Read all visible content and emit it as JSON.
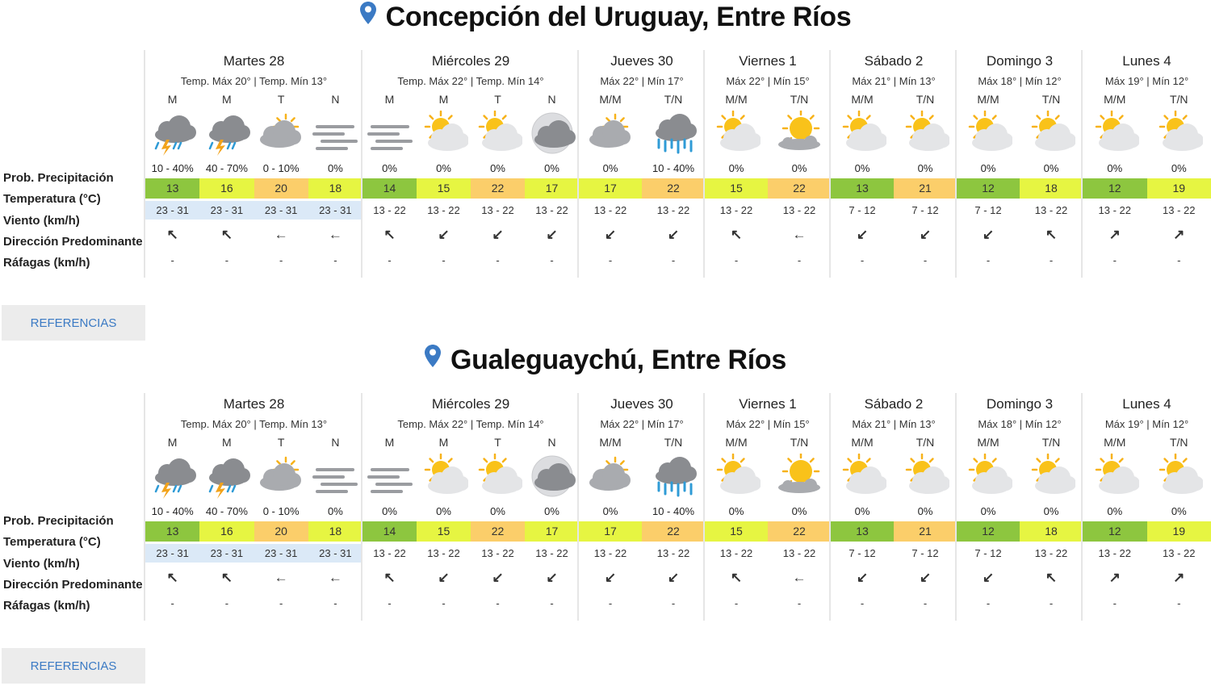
{
  "labels": {
    "prob": "Prob. Precipitación",
    "temp": "Temperatura (°C)",
    "wind": "Viento (km/h)",
    "dir": "Dirección Predominante",
    "gust": "Ráfagas (km/h)"
  },
  "colors": {
    "tcool": "#8dc63f",
    "tmild": "#e6f542",
    "twarm": "#fbce6a",
    "windbg": "#dbe9f7",
    "pin": "#3b7ac4",
    "ref": "#3b7ac4"
  },
  "locations": [
    {
      "title": "Concepción del Uruguay, Entre Ríos",
      "ref_label": "REFERENCIAS",
      "days": [
        {
          "name": "Martes 28",
          "temps": "Temp. Máx 20° | Temp. Mín 13°",
          "slots": [
            {
              "label": "M",
              "icon": "storm-icon",
              "precip": "10 - 40%",
              "temp": "13",
              "tcolor": "#8dc63f",
              "wind": "23 - 31",
              "dir": "↖",
              "gust": "-"
            },
            {
              "label": "M",
              "icon": "storm-icon",
              "precip": "40 - 70%",
              "temp": "16",
              "tcolor": "#e6f542",
              "wind": "23 - 31",
              "dir": "↖",
              "gust": "-"
            },
            {
              "label": "T",
              "icon": "cloudy-sun-icon",
              "precip": "0 - 10%",
              "temp": "20",
              "tcolor": "#fbce6a",
              "wind": "23 - 31",
              "dir": "←",
              "gust": "-"
            },
            {
              "label": "N",
              "icon": "fog-icon",
              "precip": "0%",
              "temp": "18",
              "tcolor": "#e6f542",
              "wind": "23 - 31",
              "dir": "←",
              "gust": "-"
            }
          ]
        },
        {
          "name": "Miércoles 29",
          "temps": "Temp. Máx 22° | Temp. Mín 14°",
          "slots": [
            {
              "label": "M",
              "icon": "fog-icon",
              "precip": "0%",
              "temp": "14",
              "tcolor": "#8dc63f",
              "wind": "13 - 22",
              "dir": "↖",
              "gust": "-"
            },
            {
              "label": "M",
              "icon": "partly-sunny-icon",
              "precip": "0%",
              "temp": "15",
              "tcolor": "#e6f542",
              "wind": "13 - 22",
              "dir": "↙",
              "gust": "-"
            },
            {
              "label": "T",
              "icon": "partly-sunny-icon",
              "precip": "0%",
              "temp": "22",
              "tcolor": "#fbce6a",
              "wind": "13 - 22",
              "dir": "↙",
              "gust": "-"
            },
            {
              "label": "N",
              "icon": "night-cloudy-icon",
              "precip": "0%",
              "temp": "17",
              "tcolor": "#e6f542",
              "wind": "13 - 22",
              "dir": "↙",
              "gust": "-"
            }
          ]
        },
        {
          "name": "Jueves 30",
          "temps": "Máx 22° | Mín 17°",
          "slots": [
            {
              "label": "M/M",
              "icon": "cloudy-sun-icon",
              "precip": "0%",
              "temp": "17",
              "tcolor": "#e6f542",
              "wind": "13 - 22",
              "dir": "↙",
              "gust": "-"
            },
            {
              "label": "T/N",
              "icon": "rain-icon",
              "precip": "10 - 40%",
              "temp": "22",
              "tcolor": "#fbce6a",
              "wind": "13 - 22",
              "dir": "↙",
              "gust": "-"
            }
          ]
        },
        {
          "name": "Viernes 1",
          "temps": "Máx 22° | Mín 15°",
          "slots": [
            {
              "label": "M/M",
              "icon": "partly-sunny-icon",
              "precip": "0%",
              "temp": "15",
              "tcolor": "#e6f542",
              "wind": "13 - 22",
              "dir": "↖",
              "gust": "-"
            },
            {
              "label": "T/N",
              "icon": "sunny-cloud-icon",
              "precip": "0%",
              "temp": "22",
              "tcolor": "#fbce6a",
              "wind": "13 - 22",
              "dir": "←",
              "gust": "-"
            }
          ]
        },
        {
          "name": "Sábado 2",
          "temps": "Máx 21° | Mín 13°",
          "slots": [
            {
              "label": "M/M",
              "icon": "partly-sunny-icon",
              "precip": "0%",
              "temp": "13",
              "tcolor": "#8dc63f",
              "wind": "7 - 12",
              "dir": "↙",
              "gust": "-"
            },
            {
              "label": "T/N",
              "icon": "partly-sunny-icon",
              "precip": "0%",
              "temp": "21",
              "tcolor": "#fbce6a",
              "wind": "7 - 12",
              "dir": "↙",
              "gust": "-"
            }
          ]
        },
        {
          "name": "Domingo 3",
          "temps": "Máx 18° | Mín 12°",
          "slots": [
            {
              "label": "M/M",
              "icon": "partly-sunny-icon",
              "precip": "0%",
              "temp": "12",
              "tcolor": "#8dc63f",
              "wind": "7 - 12",
              "dir": "↙",
              "gust": "-"
            },
            {
              "label": "T/N",
              "icon": "partly-sunny-icon",
              "precip": "0%",
              "temp": "18",
              "tcolor": "#e6f542",
              "wind": "13 - 22",
              "dir": "↖",
              "gust": "-"
            }
          ]
        },
        {
          "name": "Lunes 4",
          "temps": "Máx 19° | Mín 12°",
          "slots": [
            {
              "label": "M/M",
              "icon": "partly-sunny-icon",
              "precip": "0%",
              "temp": "12",
              "tcolor": "#8dc63f",
              "wind": "13 - 22",
              "dir": "↗",
              "gust": "-"
            },
            {
              "label": "T/N",
              "icon": "partly-sunny-icon",
              "precip": "0%",
              "temp": "19",
              "tcolor": "#e6f542",
              "wind": "13 - 22",
              "dir": "↗",
              "gust": "-"
            }
          ]
        }
      ]
    },
    {
      "title": "Gualeguaychú, Entre Ríos",
      "ref_label": "REFERENCIAS",
      "days": [
        {
          "name": "Martes 28",
          "temps": "Temp. Máx 20° | Temp. Mín 13°",
          "slots": [
            {
              "label": "M",
              "icon": "storm-icon",
              "precip": "10 - 40%",
              "temp": "13",
              "tcolor": "#8dc63f",
              "wind": "23 - 31",
              "dir": "↖",
              "gust": "-"
            },
            {
              "label": "M",
              "icon": "storm-icon",
              "precip": "40 - 70%",
              "temp": "16",
              "tcolor": "#e6f542",
              "wind": "23 - 31",
              "dir": "↖",
              "gust": "-"
            },
            {
              "label": "T",
              "icon": "cloudy-sun-icon",
              "precip": "0 - 10%",
              "temp": "20",
              "tcolor": "#fbce6a",
              "wind": "23 - 31",
              "dir": "←",
              "gust": "-"
            },
            {
              "label": "N",
              "icon": "fog-icon",
              "precip": "0%",
              "temp": "18",
              "tcolor": "#e6f542",
              "wind": "23 - 31",
              "dir": "←",
              "gust": "-"
            }
          ]
        },
        {
          "name": "Miércoles 29",
          "temps": "Temp. Máx 22° | Temp. Mín 14°",
          "slots": [
            {
              "label": "M",
              "icon": "fog-icon",
              "precip": "0%",
              "temp": "14",
              "tcolor": "#8dc63f",
              "wind": "13 - 22",
              "dir": "↖",
              "gust": "-"
            },
            {
              "label": "M",
              "icon": "partly-sunny-icon",
              "precip": "0%",
              "temp": "15",
              "tcolor": "#e6f542",
              "wind": "13 - 22",
              "dir": "↙",
              "gust": "-"
            },
            {
              "label": "T",
              "icon": "partly-sunny-icon",
              "precip": "0%",
              "temp": "22",
              "tcolor": "#fbce6a",
              "wind": "13 - 22",
              "dir": "↙",
              "gust": "-"
            },
            {
              "label": "N",
              "icon": "night-cloudy-icon",
              "precip": "0%",
              "temp": "17",
              "tcolor": "#e6f542",
              "wind": "13 - 22",
              "dir": "↙",
              "gust": "-"
            }
          ]
        },
        {
          "name": "Jueves 30",
          "temps": "Máx 22° | Mín 17°",
          "slots": [
            {
              "label": "M/M",
              "icon": "cloudy-sun-icon",
              "precip": "0%",
              "temp": "17",
              "tcolor": "#e6f542",
              "wind": "13 - 22",
              "dir": "↙",
              "gust": "-"
            },
            {
              "label": "T/N",
              "icon": "rain-icon",
              "precip": "10 - 40%",
              "temp": "22",
              "tcolor": "#fbce6a",
              "wind": "13 - 22",
              "dir": "↙",
              "gust": "-"
            }
          ]
        },
        {
          "name": "Viernes 1",
          "temps": "Máx 22° | Mín 15°",
          "slots": [
            {
              "label": "M/M",
              "icon": "partly-sunny-icon",
              "precip": "0%",
              "temp": "15",
              "tcolor": "#e6f542",
              "wind": "13 - 22",
              "dir": "↖",
              "gust": "-"
            },
            {
              "label": "T/N",
              "icon": "sunny-cloud-icon",
              "precip": "0%",
              "temp": "22",
              "tcolor": "#fbce6a",
              "wind": "13 - 22",
              "dir": "←",
              "gust": "-"
            }
          ]
        },
        {
          "name": "Sábado 2",
          "temps": "Máx 21° | Mín 13°",
          "slots": [
            {
              "label": "M/M",
              "icon": "partly-sunny-icon",
              "precip": "0%",
              "temp": "13",
              "tcolor": "#8dc63f",
              "wind": "7 - 12",
              "dir": "↙",
              "gust": "-"
            },
            {
              "label": "T/N",
              "icon": "partly-sunny-icon",
              "precip": "0%",
              "temp": "21",
              "tcolor": "#fbce6a",
              "wind": "7 - 12",
              "dir": "↙",
              "gust": "-"
            }
          ]
        },
        {
          "name": "Domingo 3",
          "temps": "Máx 18° | Mín 12°",
          "slots": [
            {
              "label": "M/M",
              "icon": "partly-sunny-icon",
              "precip": "0%",
              "temp": "12",
              "tcolor": "#8dc63f",
              "wind": "7 - 12",
              "dir": "↙",
              "gust": "-"
            },
            {
              "label": "T/N",
              "icon": "partly-sunny-icon",
              "precip": "0%",
              "temp": "18",
              "tcolor": "#e6f542",
              "wind": "13 - 22",
              "dir": "↖",
              "gust": "-"
            }
          ]
        },
        {
          "name": "Lunes 4",
          "temps": "Máx 19° | Mín 12°",
          "slots": [
            {
              "label": "M/M",
              "icon": "partly-sunny-icon",
              "precip": "0%",
              "temp": "12",
              "tcolor": "#8dc63f",
              "wind": "13 - 22",
              "dir": "↗",
              "gust": "-"
            },
            {
              "label": "T/N",
              "icon": "partly-sunny-icon",
              "precip": "0%",
              "temp": "19",
              "tcolor": "#e6f542",
              "wind": "13 - 22",
              "dir": "↗",
              "gust": "-"
            }
          ]
        }
      ]
    }
  ]
}
